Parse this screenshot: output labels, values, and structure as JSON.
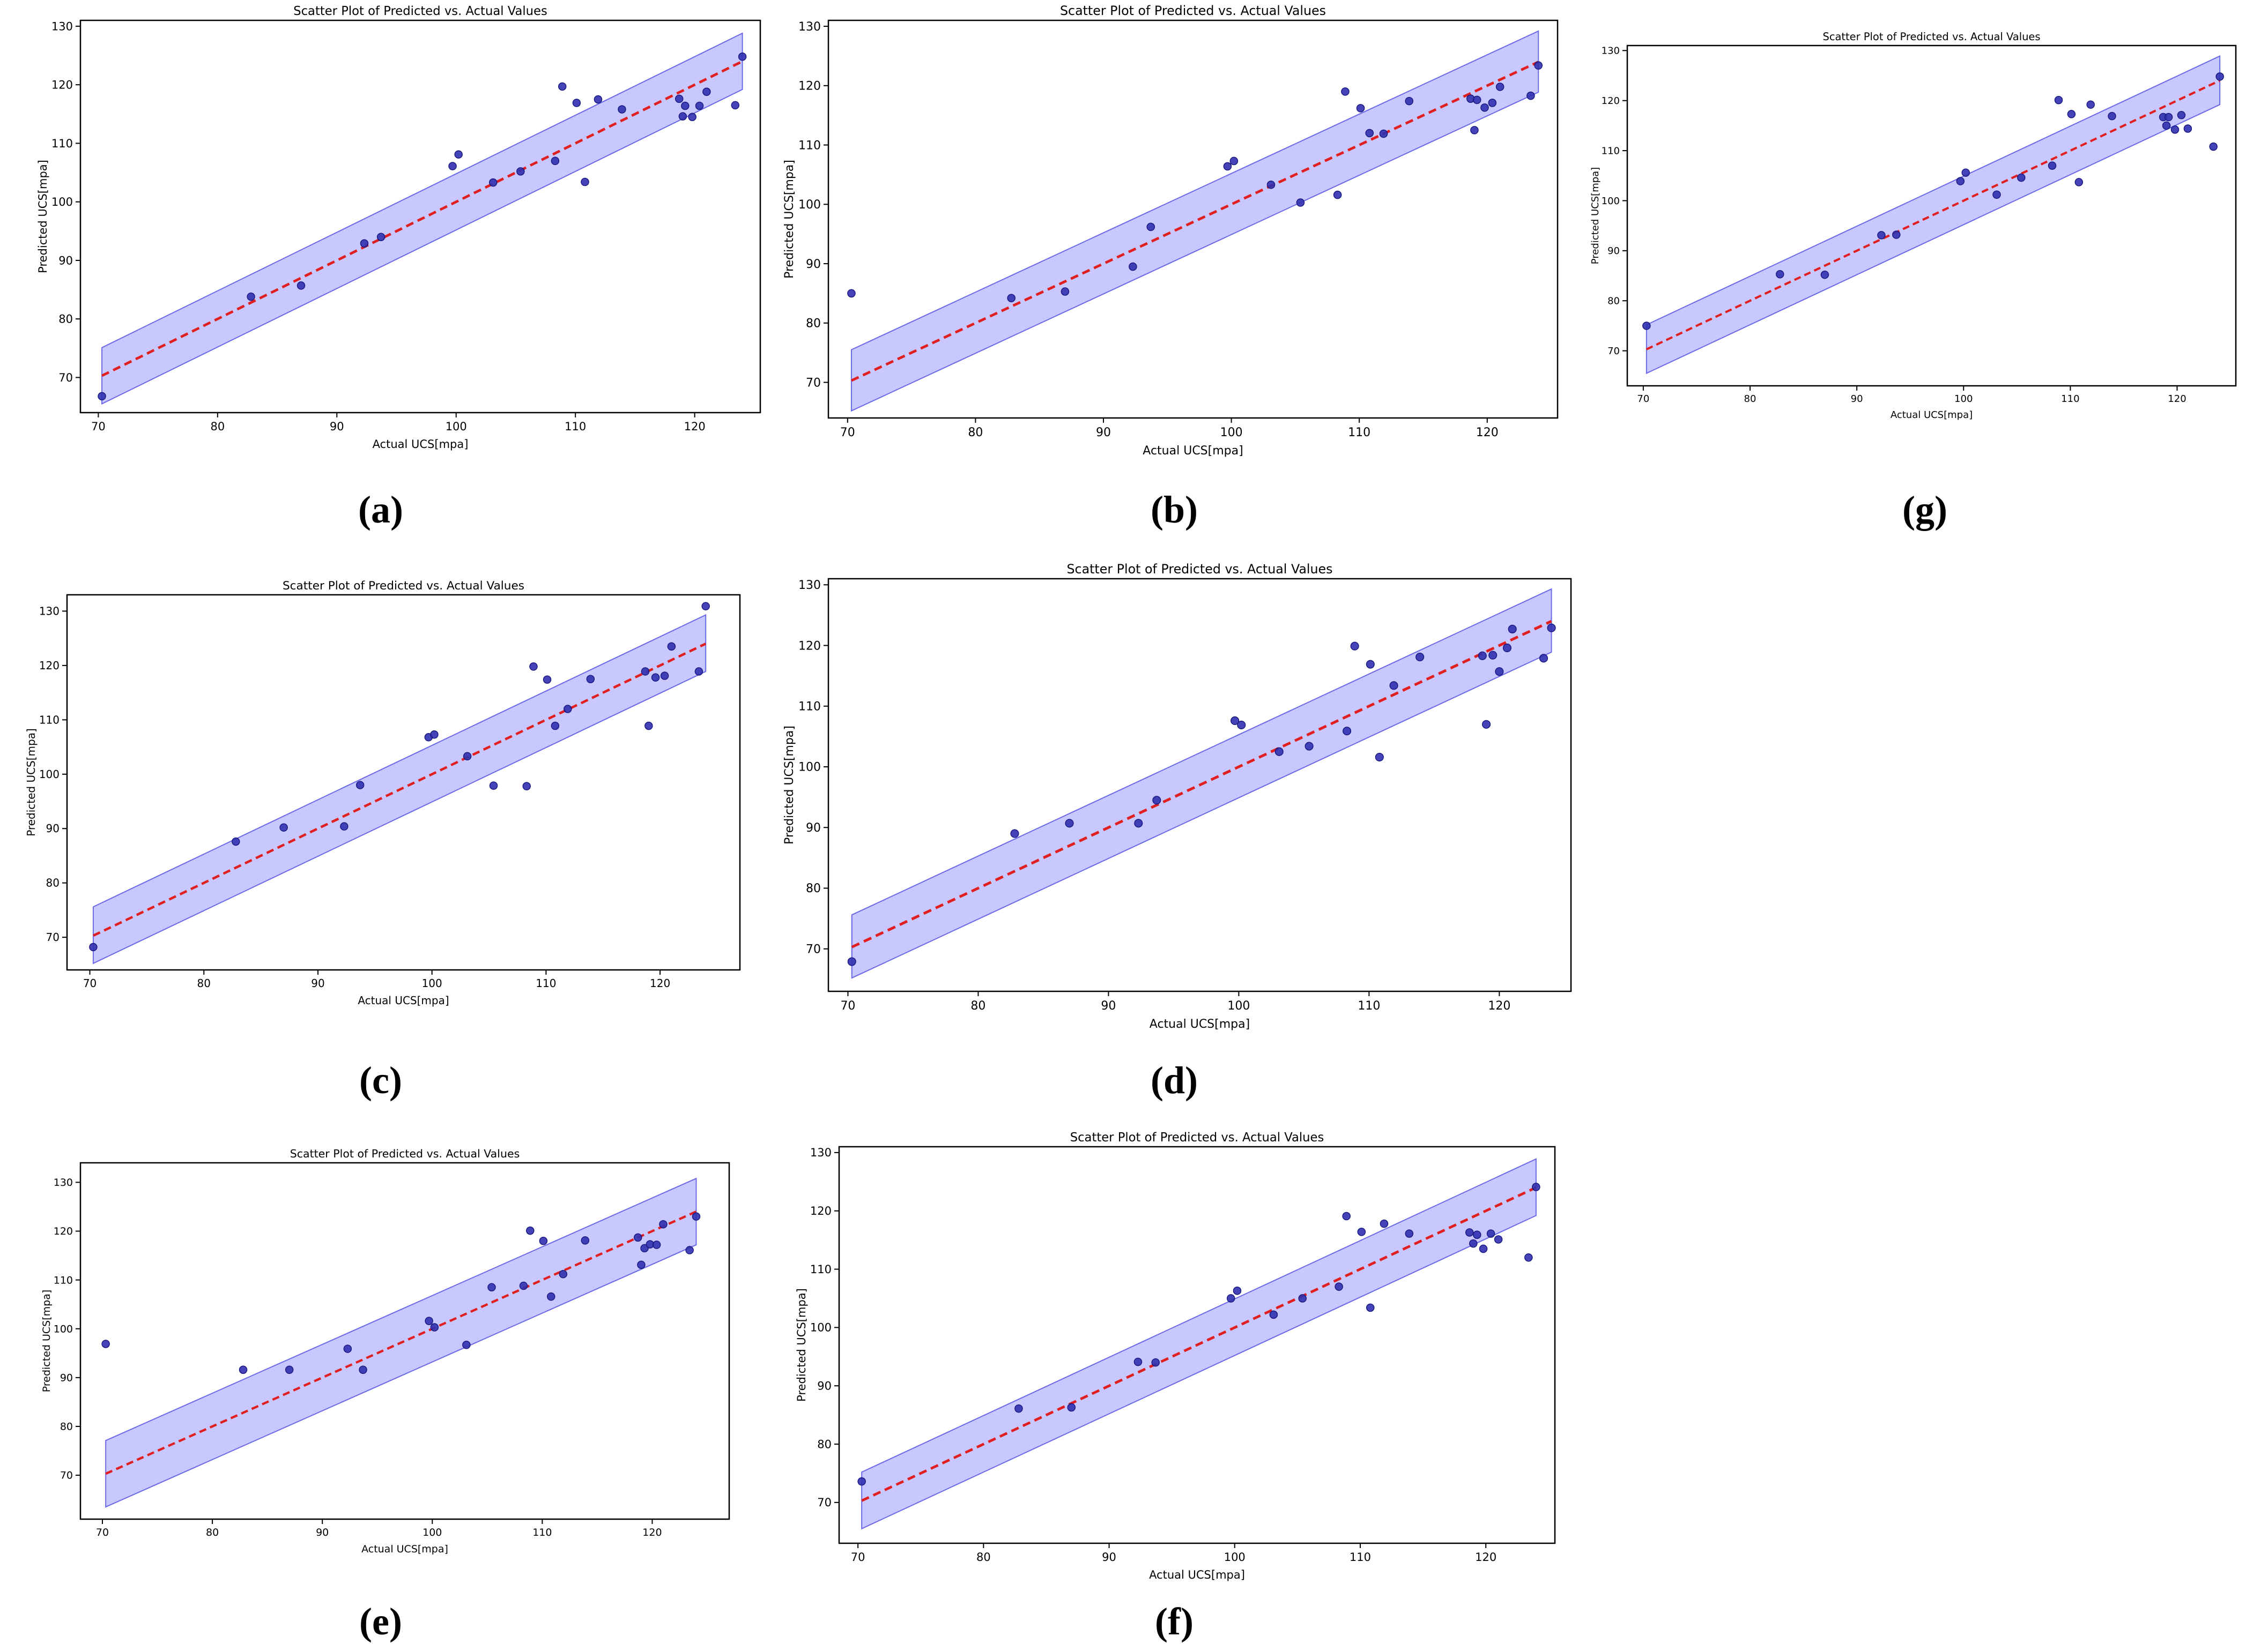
{
  "figure": {
    "panel_labels": [
      "(a)",
      "(b)",
      "(g)",
      "(c)",
      "(d)",
      "(e)",
      "(f)"
    ]
  },
  "style": {
    "point_color": "#3030b0",
    "point_edge": "#1a1a80",
    "fit_line_color": "#e02020",
    "band_fill": "#9a9aff",
    "band_edge": "#6a6ae8",
    "axis_color": "#000000"
  },
  "chart_data": [
    {
      "id": "a",
      "label": "(a)",
      "type": "scatter",
      "title": "Scatter Plot of Predicted vs. Actual Values",
      "xlabel": "Actual UCS[mpa]",
      "ylabel": "Predicted UCS[mpa]",
      "xlim": [
        68.5,
        125.5
      ],
      "ylim": [
        64,
        131
      ],
      "xticks": [
        70,
        80,
        90,
        100,
        110,
        120
      ],
      "yticks": [
        70,
        80,
        90,
        100,
        110,
        120,
        130
      ],
      "fit_line": {
        "x": [
          70.3,
          124
        ],
        "y": [
          70.3,
          124
        ]
      },
      "band": {
        "x": [
          70.3,
          124
        ],
        "lower": [
          65.5,
          119.2
        ],
        "upper": [
          75.1,
          128.8
        ]
      },
      "points": {
        "x": [
          70.3,
          82.8,
          87,
          92.3,
          93.7,
          99.7,
          100.2,
          103.1,
          105.4,
          108.3,
          108.9,
          110.1,
          110.8,
          111.9,
          113.9,
          118.7,
          119,
          119.2,
          119.8,
          120.4,
          121,
          123.4,
          124
        ],
        "y": [
          66.8,
          83.8,
          85.7,
          92.9,
          94,
          106.1,
          108.1,
          103.3,
          105.2,
          107,
          119.7,
          116.9,
          103.4,
          117.5,
          115.8,
          117.6,
          114.6,
          116.4,
          114.5,
          116.4,
          118.8,
          116.5,
          124.8
        ]
      }
    },
    {
      "id": "b",
      "label": "(b)",
      "type": "scatter",
      "title": "Scatter Plot of Predicted vs. Actual Values",
      "xlabel": "Actual UCS[mpa]",
      "ylabel": "Predicted UCS[mpa]",
      "xlim": [
        68.5,
        125.5
      ],
      "ylim": [
        64,
        131
      ],
      "xticks": [
        70,
        80,
        90,
        100,
        110,
        120
      ],
      "yticks": [
        70,
        80,
        90,
        100,
        110,
        120,
        130
      ],
      "fit_line": {
        "x": [
          70.3,
          124
        ],
        "y": [
          70.3,
          124
        ]
      },
      "band": {
        "x": [
          70.3,
          124
        ],
        "lower": [
          65.2,
          118.9
        ],
        "upper": [
          75.5,
          129.2
        ]
      },
      "points": {
        "x": [
          70.3,
          82.8,
          87,
          92.3,
          93.7,
          99.7,
          100.2,
          103.1,
          105.4,
          108.3,
          108.9,
          110.1,
          110.8,
          111.9,
          113.9,
          118.7,
          119,
          119.2,
          119.8,
          120.4,
          121,
          123.4,
          124
        ],
        "y": [
          85,
          84.2,
          85.3,
          89.5,
          96.2,
          106.4,
          107.3,
          103.3,
          100.3,
          101.6,
          119,
          116.2,
          112,
          111.9,
          117.4,
          117.8,
          112.5,
          117.6,
          116.3,
          117.1,
          119.8,
          118.3,
          123.4
        ]
      }
    },
    {
      "id": "g",
      "label": "(g)",
      "type": "scatter",
      "title": "Scatter Plot of Predicted vs. Actual Values",
      "xlabel": "Actual UCS[mpa]",
      "ylabel": "Predicted UCS[mpa]",
      "xlim": [
        68.5,
        125.5
      ],
      "ylim": [
        63,
        131
      ],
      "xticks": [
        70,
        80,
        90,
        100,
        110,
        120
      ],
      "yticks": [
        70,
        80,
        90,
        100,
        110,
        120,
        130
      ],
      "fit_line": {
        "x": [
          70.3,
          124
        ],
        "y": [
          70.3,
          124
        ]
      },
      "band": {
        "x": [
          70.3,
          124
        ],
        "lower": [
          65.5,
          119.2
        ],
        "upper": [
          75.2,
          128.9
        ]
      },
      "points": {
        "x": [
          70.3,
          82.8,
          87,
          92.3,
          93.7,
          99.7,
          100.2,
          103.1,
          105.4,
          108.3,
          108.9,
          110.1,
          110.8,
          111.9,
          113.9,
          118.7,
          119,
          119.2,
          119.8,
          120.4,
          121,
          123.4,
          124
        ],
        "y": [
          75,
          85.3,
          85.2,
          93.1,
          93.2,
          103.9,
          105.6,
          101.2,
          104.6,
          107,
          120.1,
          117.3,
          103.7,
          119.2,
          116.9,
          116.7,
          115,
          116.7,
          114.2,
          117.1,
          114.4,
          110.8,
          124.8
        ]
      }
    },
    {
      "id": "c",
      "label": "(c)",
      "type": "scatter",
      "title": "Scatter Plot of Predicted vs. Actual Values",
      "xlabel": "Actual UCS[mpa]",
      "ylabel": "Predicted UCS[mpa]",
      "xlim": [
        68,
        127
      ],
      "ylim": [
        64,
        133
      ],
      "xticks": [
        70,
        80,
        90,
        100,
        110,
        120
      ],
      "yticks": [
        70,
        80,
        90,
        100,
        110,
        120,
        130
      ],
      "fit_line": {
        "x": [
          70.3,
          124
        ],
        "y": [
          70.3,
          124
        ]
      },
      "band": {
        "x": [
          70.3,
          124
        ],
        "lower": [
          65.2,
          118.9
        ],
        "upper": [
          75.6,
          129.3
        ]
      },
      "points": {
        "x": [
          70.3,
          82.8,
          87,
          92.3,
          93.7,
          99.7,
          100.2,
          103.1,
          105.4,
          108.3,
          108.9,
          110.1,
          110.8,
          111.9,
          113.9,
          118.7,
          119,
          119.6,
          120.4,
          121,
          123.4,
          124
        ],
        "y": [
          68.2,
          87.6,
          90.2,
          90.4,
          98,
          106.8,
          107.3,
          103.3,
          97.9,
          97.8,
          119.8,
          117.4,
          108.9,
          112,
          117.5,
          118.9,
          108.9,
          117.8,
          118.1,
          123.5,
          118.9,
          130.9
        ]
      }
    },
    {
      "id": "d",
      "label": "(d)",
      "type": "scatter",
      "title": "Scatter Plot of Predicted vs. Actual Values",
      "xlabel": "Actual UCS[mpa]",
      "ylabel": "Predicted UCS[mpa]",
      "xlim": [
        68.5,
        125.5
      ],
      "ylim": [
        63,
        131
      ],
      "xticks": [
        70,
        80,
        90,
        100,
        110,
        120
      ],
      "yticks": [
        70,
        80,
        90,
        100,
        110,
        120,
        130
      ],
      "fit_line": {
        "x": [
          70.3,
          124
        ],
        "y": [
          70.3,
          124
        ]
      },
      "band": {
        "x": [
          70.3,
          124
        ],
        "lower": [
          65.2,
          118.9
        ],
        "upper": [
          75.6,
          129.3
        ]
      },
      "points": {
        "x": [
          70.3,
          82.8,
          87,
          92.3,
          93.7,
          99.7,
          100.2,
          103.1,
          105.4,
          108.3,
          108.9,
          110.1,
          110.8,
          111.9,
          113.9,
          118.7,
          119,
          119.5,
          120,
          120.6,
          121,
          123.4,
          124
        ],
        "y": [
          67.9,
          89,
          90.7,
          90.7,
          94.5,
          107.6,
          106.9,
          102.5,
          103.4,
          105.9,
          119.9,
          116.9,
          101.6,
          113.4,
          118.1,
          118.3,
          107,
          118.4,
          115.7,
          119.6,
          122.7,
          117.9,
          122.9
        ]
      }
    },
    {
      "id": "e",
      "label": "(e)",
      "type": "scatter",
      "title": "Scatter Plot of Predicted vs. Actual Values",
      "xlabel": "Actual UCS[mpa]",
      "ylabel": "Predicted UCS[mpa]",
      "xlim": [
        68,
        127
      ],
      "ylim": [
        61,
        134
      ],
      "xticks": [
        70,
        80,
        90,
        100,
        110,
        120
      ],
      "yticks": [
        70,
        80,
        90,
        100,
        110,
        120,
        130
      ],
      "fit_line": {
        "x": [
          70.3,
          124
        ],
        "y": [
          70.3,
          124
        ]
      },
      "band": {
        "x": [
          70.3,
          124
        ],
        "lower": [
          63.5,
          117.2
        ],
        "upper": [
          77.1,
          130.8
        ]
      },
      "points": {
        "x": [
          70.3,
          82.8,
          87,
          92.3,
          93.7,
          99.7,
          100.2,
          103.1,
          105.4,
          108.3,
          108.9,
          110.1,
          110.8,
          111.9,
          113.9,
          118.7,
          119,
          119.3,
          119.8,
          120.4,
          121,
          123.4,
          124
        ],
        "y": [
          96.9,
          91.6,
          91.6,
          95.9,
          91.6,
          101.6,
          100.3,
          96.7,
          108.5,
          108.8,
          120.1,
          118,
          106.6,
          111.2,
          118.1,
          118.7,
          113.1,
          116.5,
          117.3,
          117.2,
          121.4,
          116.1,
          123
        ]
      }
    },
    {
      "id": "f",
      "label": "(f)",
      "type": "scatter",
      "title": "Scatter Plot of Predicted vs. Actual Values",
      "xlabel": "Actual UCS[mpa]",
      "ylabel": "Predicted UCS[mpa]",
      "xlim": [
        68.5,
        125.5
      ],
      "ylim": [
        63,
        131
      ],
      "xticks": [
        70,
        80,
        90,
        100,
        110,
        120
      ],
      "yticks": [
        70,
        80,
        90,
        100,
        110,
        120,
        130
      ],
      "fit_line": {
        "x": [
          70.3,
          124
        ],
        "y": [
          70.3,
          124
        ]
      },
      "band": {
        "x": [
          70.3,
          124
        ],
        "lower": [
          65.5,
          119.2
        ],
        "upper": [
          75.2,
          128.9
        ]
      },
      "points": {
        "x": [
          70.3,
          82.8,
          87,
          92.3,
          93.7,
          99.7,
          100.2,
          103.1,
          105.4,
          108.3,
          108.9,
          110.1,
          110.8,
          111.9,
          113.9,
          118.7,
          119,
          119.3,
          119.8,
          120.4,
          121,
          123.4,
          124
        ],
        "y": [
          73.6,
          86.1,
          86.3,
          94.1,
          94,
          105,
          106.3,
          102.2,
          105,
          107,
          119.1,
          116.4,
          103.4,
          117.8,
          116.1,
          116.3,
          114.4,
          115.9,
          113.5,
          116.1,
          115.1,
          112,
          124.1
        ]
      }
    }
  ]
}
